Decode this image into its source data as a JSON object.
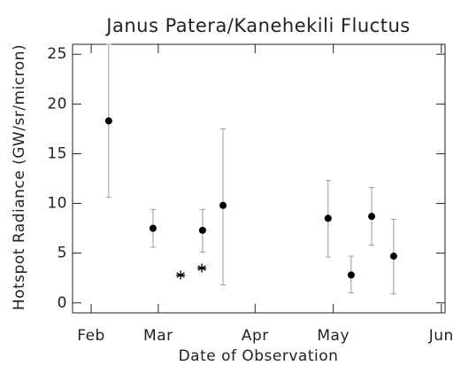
{
  "chart_data": {
    "type": "scatter",
    "title": "Janus Patera/Kanehekili Fluctus",
    "xlabel": "Date of Observation",
    "ylabel": "Hotspot Radiance (GW/sr/micron)",
    "xlim": [
      0,
      100
    ],
    "xticks": [
      {
        "value": 5,
        "label": "Feb"
      },
      {
        "value": 23,
        "label": "Mar"
      },
      {
        "value": 49,
        "label": "Apr"
      },
      {
        "value": 70,
        "label": "May"
      },
      {
        "value": 99,
        "label": "Jun"
      }
    ],
    "ylim": [
      -1,
      26
    ],
    "yticks": [
      0,
      5,
      10,
      15,
      20,
      25
    ],
    "series": [
      {
        "marker": "dot",
        "color": "#000000",
        "x": [
          9.7,
          21.6,
          34.9,
          40.4,
          68.6,
          74.8,
          80.3,
          86.2
        ],
        "values": [
          18.3,
          7.5,
          7.3,
          9.8,
          8.5,
          2.8,
          8.7,
          4.7
        ],
        "low": [
          10.6,
          5.6,
          5.1,
          1.8,
          4.6,
          1.0,
          5.8,
          0.9
        ],
        "high": [
          26,
          9.4,
          9.4,
          17.5,
          12.3,
          4.7,
          11.6,
          8.4
        ]
      },
      {
        "marker": "star",
        "color": "#000000",
        "x": [
          29.0,
          34.7
        ],
        "values": [
          2.8,
          3.5
        ]
      }
    ]
  }
}
